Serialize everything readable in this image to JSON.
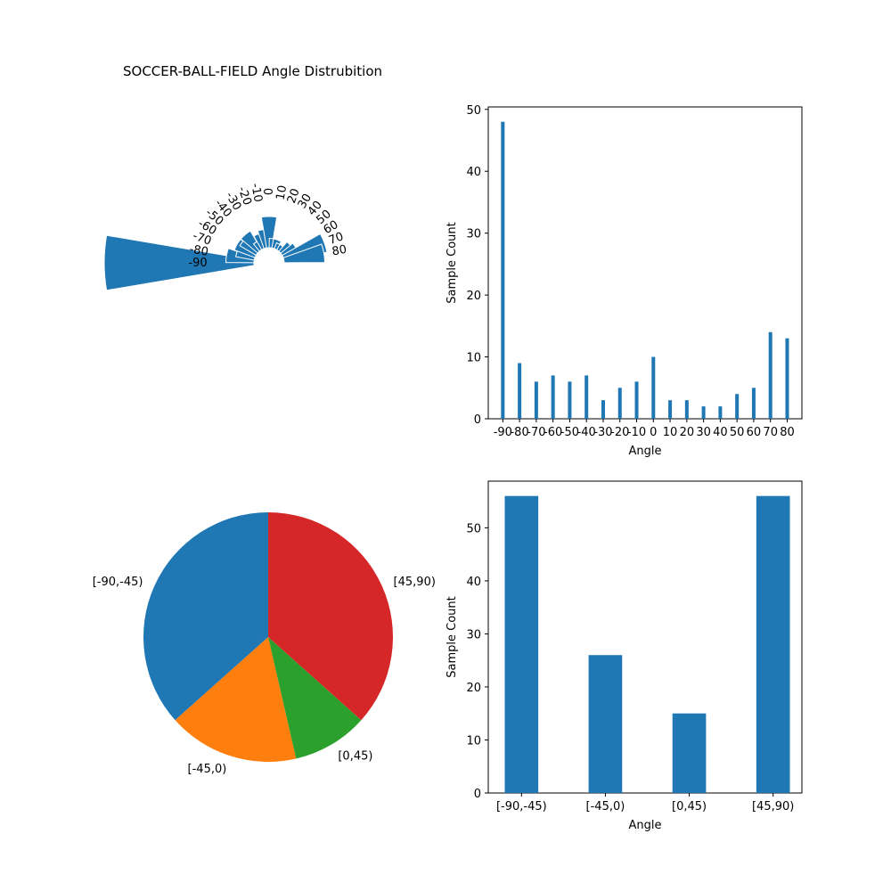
{
  "figure": {
    "title": "SOCCER-BALL-FIELD Angle Distrubition"
  },
  "colors": {
    "bar": "#1f77b4",
    "pie": [
      "#1f77b4",
      "#ff7f0e",
      "#2ca02c",
      "#d62728"
    ]
  },
  "chart_data": [
    {
      "id": "polar",
      "type": "bar",
      "subtype": "polar",
      "categories": [
        "-90",
        "-80",
        "-70",
        "-60",
        "-50",
        "-40",
        "-30",
        "-20",
        "-10",
        "0",
        "10",
        "20",
        "30",
        "40",
        "50",
        "60",
        "70",
        "80"
      ],
      "values": [
        48,
        9,
        6,
        7,
        6,
        7,
        3,
        5,
        6,
        10,
        3,
        3,
        2,
        2,
        4,
        5,
        14,
        13
      ]
    },
    {
      "id": "hist",
      "type": "bar",
      "categories": [
        "-90",
        "-80",
        "-70",
        "-60",
        "-50",
        "-40",
        "-30",
        "-20",
        "-10",
        "0",
        "10",
        "20",
        "30",
        "40",
        "50",
        "60",
        "70",
        "80"
      ],
      "values": [
        48,
        9,
        6,
        7,
        6,
        7,
        3,
        5,
        6,
        10,
        3,
        3,
        2,
        2,
        4,
        5,
        14,
        13
      ],
      "xlabel": "Angle",
      "ylabel": "Sample Count",
      "ylim": [
        0,
        50.4
      ],
      "yticks": [
        "0",
        "10",
        "20",
        "30",
        "40",
        "50"
      ]
    },
    {
      "id": "pie",
      "type": "pie",
      "labels": [
        "[-90,-45)",
        "[-45,0)",
        "[0,45)",
        "[45,90)"
      ],
      "values": [
        56,
        26,
        15,
        56
      ]
    },
    {
      "id": "range",
      "type": "bar",
      "categories": [
        "[-90,-45)",
        "[-45,0)",
        "[0,45)",
        "[45,90)"
      ],
      "values": [
        56,
        26,
        15,
        56
      ],
      "xlabel": "Angle",
      "ylabel": "Sample Count",
      "ylim": [
        0,
        58.8
      ],
      "yticks": [
        "0",
        "10",
        "20",
        "30",
        "40",
        "50"
      ]
    }
  ]
}
